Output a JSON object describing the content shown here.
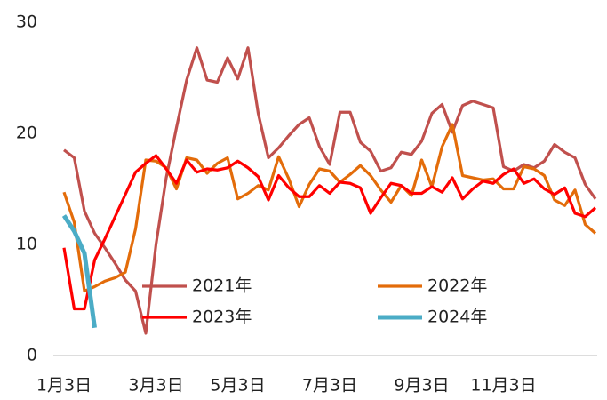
{
  "chart_data": {
    "type": "line",
    "categories": [
      "1月3日",
      null,
      null,
      null,
      null,
      null,
      null,
      null,
      null,
      "3月3日",
      null,
      null,
      null,
      null,
      null,
      null,
      null,
      "5月3日",
      null,
      null,
      null,
      null,
      null,
      null,
      null,
      null,
      "7月3日",
      null,
      null,
      null,
      null,
      null,
      null,
      null,
      null,
      "9月3日",
      null,
      null,
      null,
      null,
      null,
      null,
      null,
      "11月3日",
      null,
      null,
      null,
      null,
      null,
      null,
      null,
      null,
      null
    ],
    "series": [
      {
        "name": "2021年",
        "color": "#c0504d",
        "values": [
          18.5,
          17.8,
          13,
          11,
          9.7,
          8.3,
          6.8,
          5.8,
          2,
          10,
          16,
          20.5,
          24.8,
          27.7,
          24.8,
          24.6,
          26.8,
          24.9,
          27.7,
          21.8,
          17.8,
          18.7,
          19.8,
          20.8,
          21.4,
          18.8,
          17.2,
          21.9,
          21.9,
          19.2,
          18.4,
          16.6,
          16.9,
          18.3,
          18.1,
          19.3,
          21.8,
          22.6,
          20.1,
          22.5,
          22.9,
          22.6,
          22.3,
          17,
          16.6,
          17.2,
          16.9,
          17.5,
          19,
          18.3,
          17.8,
          15.4,
          14.1
        ]
      },
      {
        "name": "2022年",
        "color": "#e36c0a",
        "values": [
          14.7,
          12,
          5.8,
          6.2,
          6.7,
          7,
          7.5,
          11.4,
          17.6,
          17.5,
          16.9,
          15,
          17.8,
          17.6,
          16.4,
          17.3,
          17.8,
          14.1,
          14.6,
          15.3,
          14.9,
          17.9,
          15.9,
          13.4,
          15.4,
          16.8,
          16.6,
          15.6,
          16.3,
          17.1,
          16.2,
          14.9,
          13.8,
          15.3,
          14.4,
          17.6,
          15.2,
          18.8,
          20.8,
          16.2,
          16,
          15.8,
          15.9,
          15,
          15,
          17,
          16.8,
          16.2,
          14,
          13.5,
          14.9,
          11.8,
          11
        ]
      },
      {
        "name": "2023年",
        "color": "#ff0000",
        "values": [
          9.7,
          4.2,
          4.2,
          8.6,
          10.5,
          12.5,
          14.5,
          16.5,
          17.3,
          18,
          16.8,
          15.5,
          17.6,
          16.5,
          16.8,
          16.7,
          16.9,
          17.5,
          16.9,
          16.1,
          14,
          16.2,
          15.1,
          14.3,
          14.3,
          15.3,
          14.6,
          15.6,
          15.5,
          15.1,
          12.8,
          14.2,
          15.5,
          15.3,
          14.6,
          14.6,
          15.2,
          14.7,
          16,
          14.1,
          15,
          15.7,
          15.5,
          16.3,
          16.8,
          15.5,
          15.9,
          15,
          14.5,
          15.1,
          12.8,
          12.5,
          13.3
        ]
      },
      {
        "name": "2024年",
        "color": "#4bacc6",
        "values": [
          12.6,
          11.2,
          9.2,
          2.5,
          null,
          null,
          null,
          null,
          null,
          null,
          null,
          null,
          null,
          null,
          null,
          null,
          null,
          null,
          null,
          null,
          null,
          null,
          null,
          null,
          null,
          null,
          null,
          null,
          null,
          null,
          null,
          null,
          null,
          null,
          null,
          null,
          null,
          null,
          null,
          null,
          null,
          null,
          null,
          null,
          null,
          null,
          null,
          null,
          null,
          null,
          null,
          null,
          null
        ]
      }
    ],
    "ylim": [
      0,
      30
    ],
    "yticks": [
      0,
      10,
      20,
      30
    ],
    "grid": false,
    "legend": "inside"
  }
}
